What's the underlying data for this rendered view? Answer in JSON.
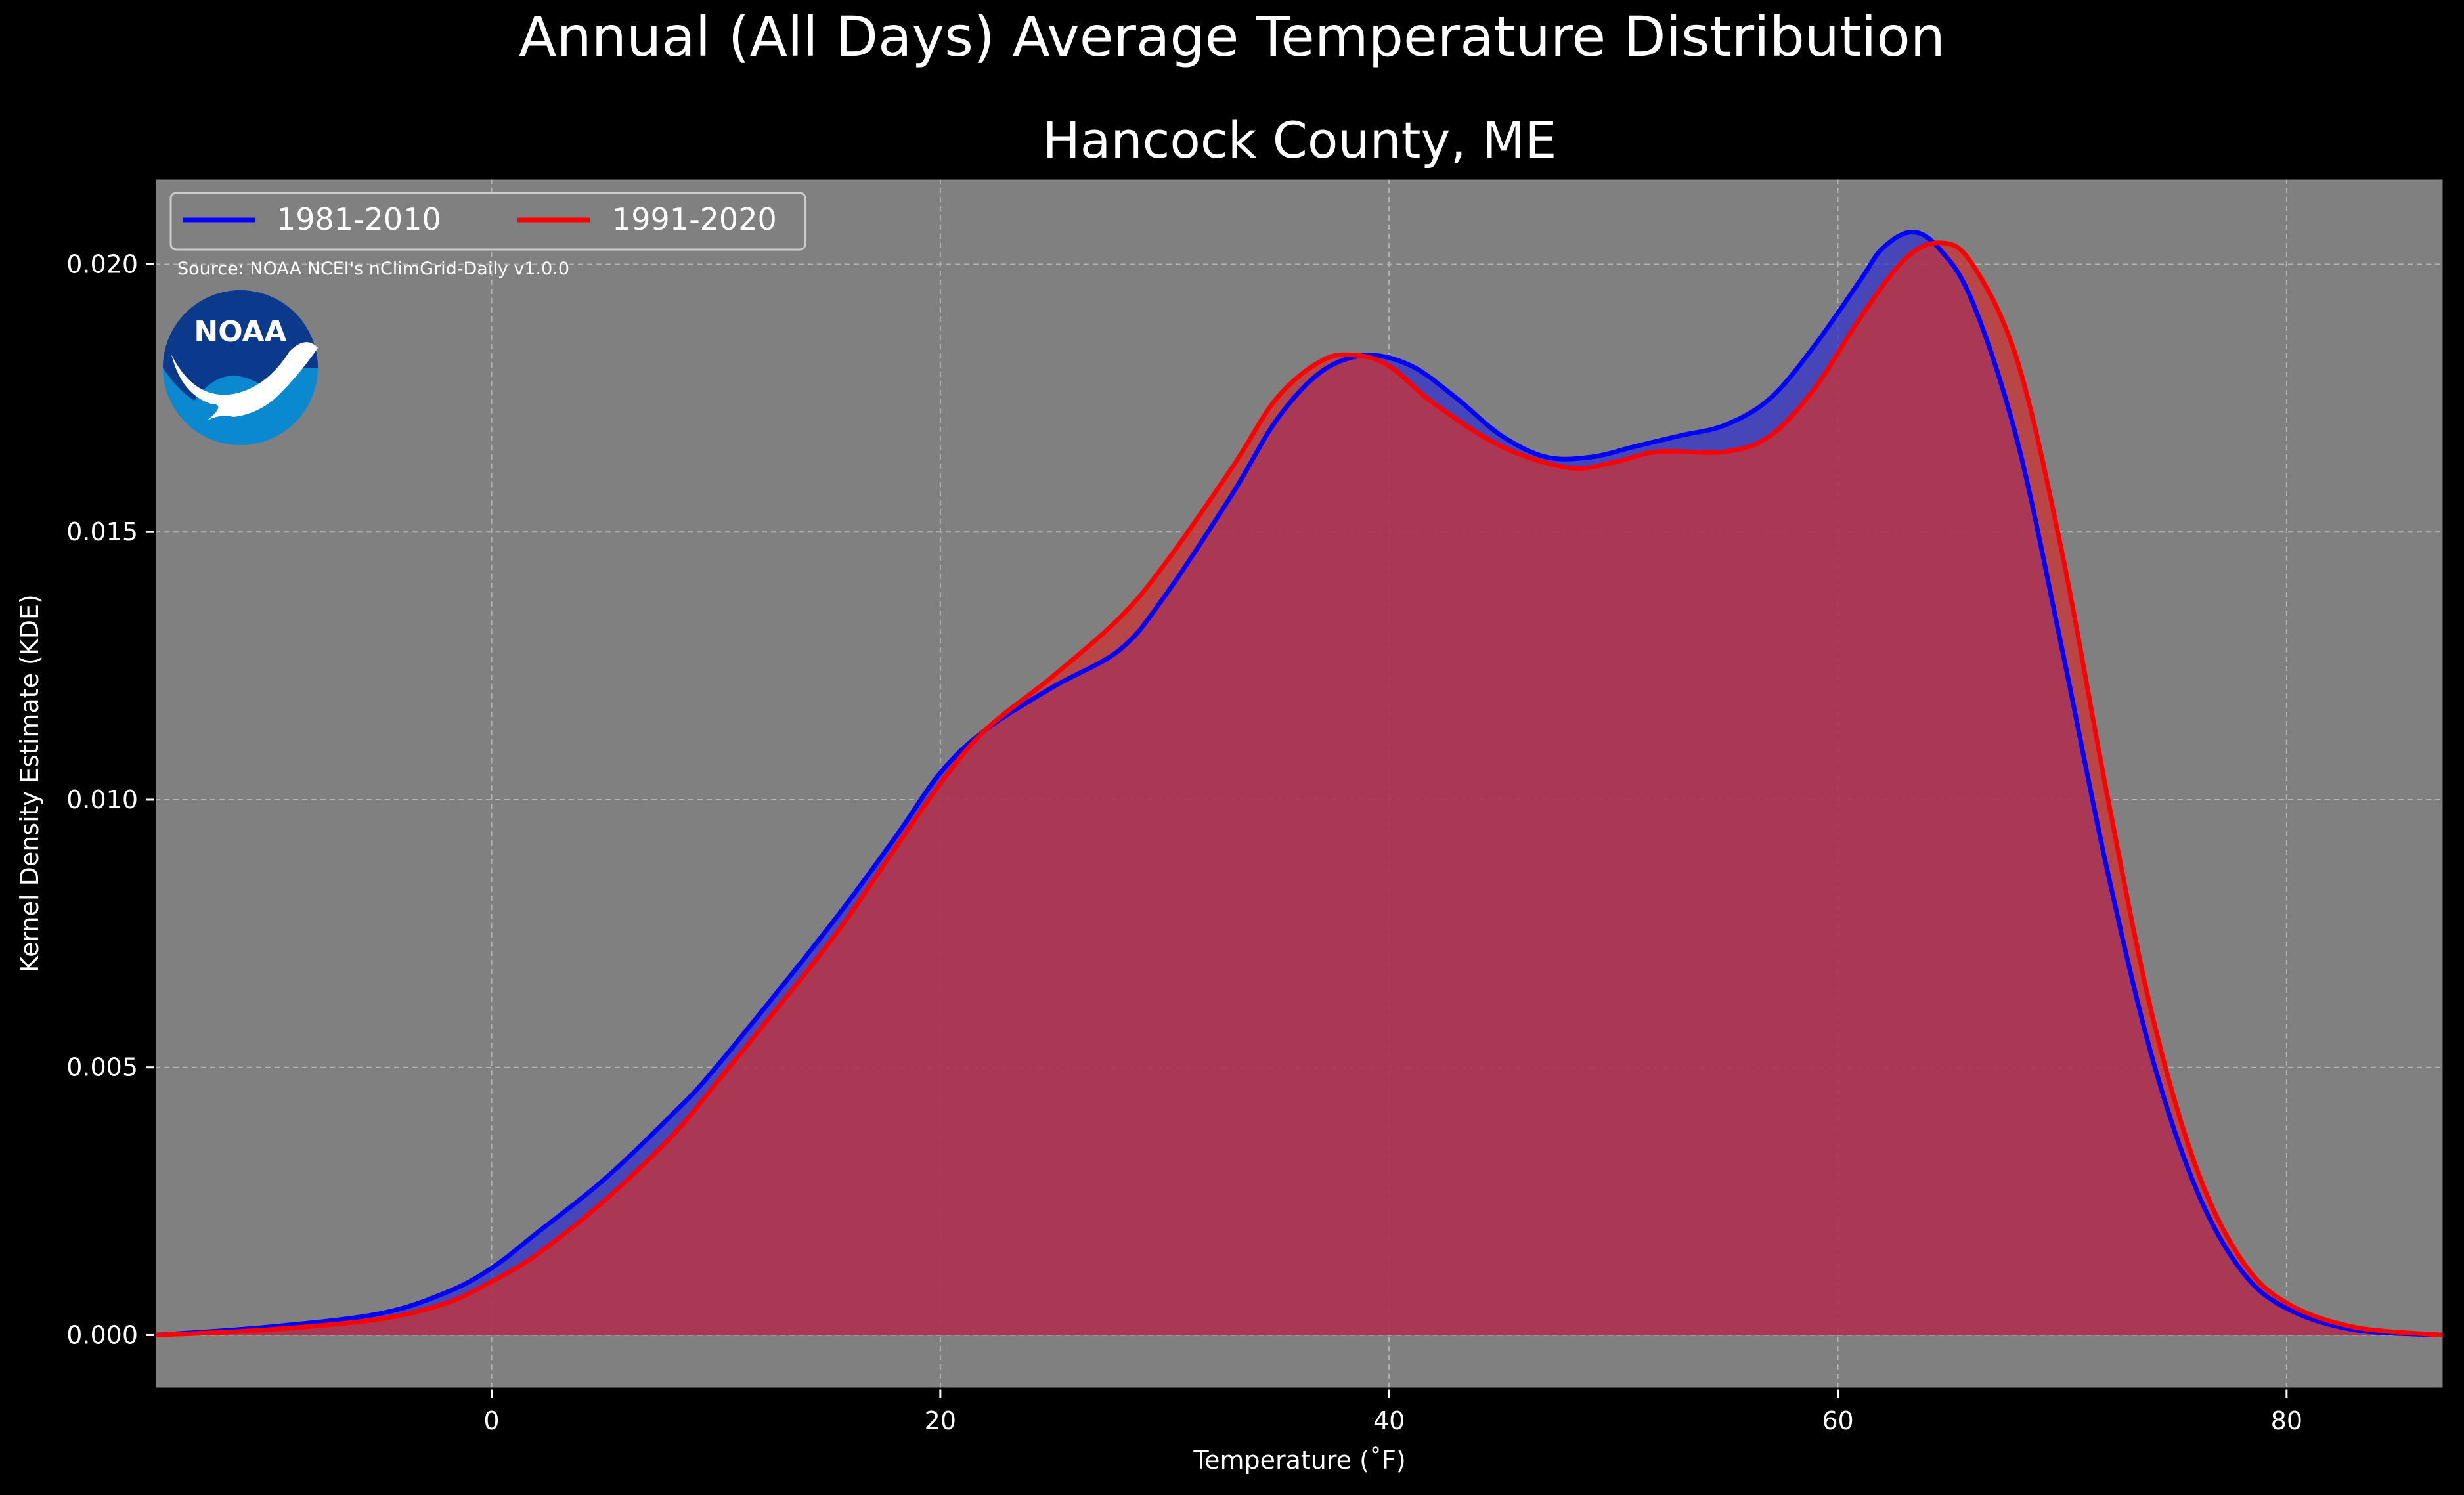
{
  "chart_data": {
    "type": "area",
    "title": "Annual (All Days) Average Temperature Distribution",
    "subtitle": "Hancock County, ME",
    "xlabel": "Temperature ($^\\circ$F)",
    "xlabel_display": "Temperature (˚F)",
    "ylabel": "Kernel Density Estimate (KDE)",
    "source": "Source: NOAA NCEI's nClimGrid-Daily v1.0.0",
    "logo_text": "NOAA",
    "xlim": [
      -15,
      87
    ],
    "ylim": [
      -0.001,
      0.0216
    ],
    "xticks": [
      0,
      20,
      40,
      60,
      80
    ],
    "yticks": [
      0.0,
      0.005,
      0.01,
      0.015,
      0.02
    ],
    "ytick_labels": [
      "0.000",
      "0.005",
      "0.010",
      "0.015",
      "0.020"
    ],
    "grid": true,
    "legend_position": "top-left",
    "series": [
      {
        "name": "1981-2010",
        "color": "#0000ff",
        "fill": "#3333cc",
        "points": [
          [
            -15,
            0.0
          ],
          [
            -10,
            0.00015
          ],
          [
            -5,
            0.0004
          ],
          [
            -2,
            0.0008
          ],
          [
            0,
            0.00125
          ],
          [
            2,
            0.0019
          ],
          [
            5,
            0.0029
          ],
          [
            8,
            0.0041
          ],
          [
            10,
            0.005
          ],
          [
            15,
            0.0076
          ],
          [
            18,
            0.0093
          ],
          [
            20,
            0.0105
          ],
          [
            22,
            0.0113
          ],
          [
            25,
            0.0121
          ],
          [
            28,
            0.0128
          ],
          [
            30,
            0.0138
          ],
          [
            33,
            0.0157
          ],
          [
            35,
            0.0171
          ],
          [
            37,
            0.018
          ],
          [
            39,
            0.0183
          ],
          [
            41,
            0.0181
          ],
          [
            43,
            0.0175
          ],
          [
            45,
            0.0168
          ],
          [
            47,
            0.0164
          ],
          [
            49,
            0.0164
          ],
          [
            51,
            0.0166
          ],
          [
            53,
            0.0168
          ],
          [
            55,
            0.017
          ],
          [
            57,
            0.0175
          ],
          [
            59,
            0.0185
          ],
          [
            61,
            0.0197
          ],
          [
            62,
            0.0203
          ],
          [
            63.3,
            0.0206
          ],
          [
            64.5,
            0.0203
          ],
          [
            66,
            0.0193
          ],
          [
            68,
            0.0167
          ],
          [
            70,
            0.0128
          ],
          [
            72,
            0.0087
          ],
          [
            74,
            0.0052
          ],
          [
            76,
            0.0027
          ],
          [
            78,
            0.0012
          ],
          [
            80,
            0.0005
          ],
          [
            83,
            0.0001
          ],
          [
            87,
            0.0
          ]
        ]
      },
      {
        "name": "1991-2020",
        "color": "#ff0000",
        "fill": "#cc3333",
        "points": [
          [
            -15,
            0.0
          ],
          [
            -10,
            0.0001
          ],
          [
            -5,
            0.0003
          ],
          [
            -2,
            0.0006
          ],
          [
            0,
            0.001
          ],
          [
            2,
            0.0015
          ],
          [
            5,
            0.0025
          ],
          [
            8,
            0.0037
          ],
          [
            10,
            0.0047
          ],
          [
            15,
            0.0073
          ],
          [
            18,
            0.0091
          ],
          [
            20,
            0.0103
          ],
          [
            22,
            0.0113
          ],
          [
            25,
            0.0123
          ],
          [
            28,
            0.0134
          ],
          [
            30,
            0.0144
          ],
          [
            33,
            0.0162
          ],
          [
            35,
            0.0175
          ],
          [
            37,
            0.0182
          ],
          [
            38.5,
            0.0183
          ],
          [
            40,
            0.0181
          ],
          [
            42,
            0.0174
          ],
          [
            45,
            0.0166
          ],
          [
            48,
            0.0162
          ],
          [
            50,
            0.0163
          ],
          [
            52,
            0.0165
          ],
          [
            55,
            0.0165
          ],
          [
            57,
            0.0168
          ],
          [
            59,
            0.0177
          ],
          [
            61,
            0.019
          ],
          [
            63,
            0.0201
          ],
          [
            64.6,
            0.0204
          ],
          [
            66,
            0.02
          ],
          [
            68,
            0.0182
          ],
          [
            70,
            0.0146
          ],
          [
            72,
            0.0101
          ],
          [
            74,
            0.006
          ],
          [
            76,
            0.0031
          ],
          [
            78,
            0.0014
          ],
          [
            80,
            0.0006
          ],
          [
            83,
            0.00015
          ],
          [
            87,
            0.0
          ]
        ]
      }
    ]
  }
}
